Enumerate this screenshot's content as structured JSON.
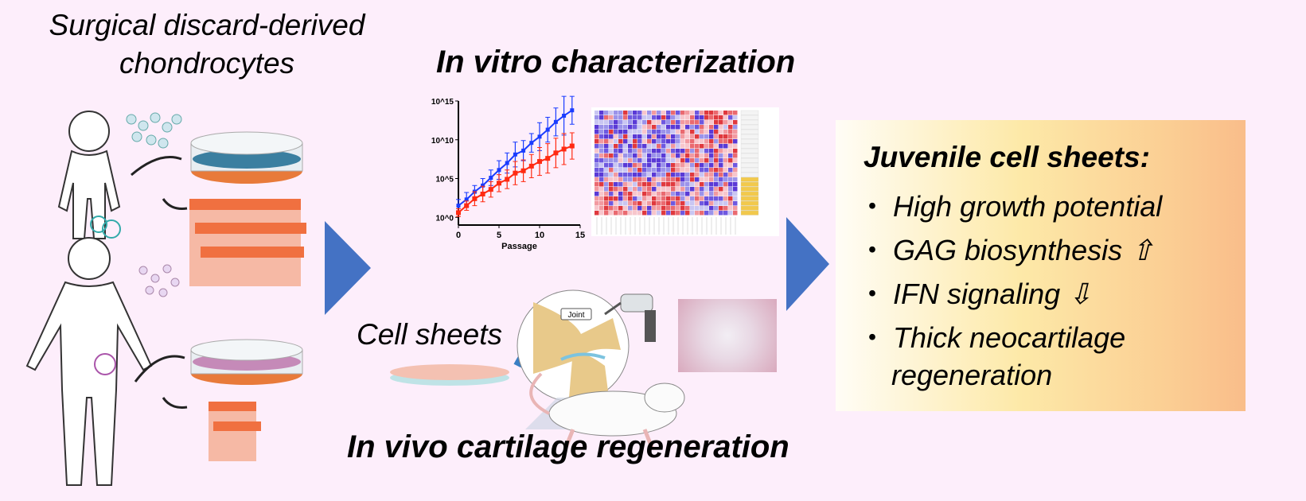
{
  "left": {
    "title_line1": "Surgical discard-derived",
    "title_line2": "chondrocytes"
  },
  "middle": {
    "in_vitro_title": "In vitro characterization",
    "in_vivo_title": "In vivo cartilage regeneration",
    "cell_sheets_label": "Cell sheets",
    "joint_label": "Joint"
  },
  "result_box": {
    "title": "Juvenile cell sheets:",
    "bullets": [
      {
        "text": "High growth potential",
        "arrow": ""
      },
      {
        "text": "GAG biosynthesis",
        "arrow": "⇧"
      },
      {
        "text": "IFN signaling",
        "arrow": "⇩"
      },
      {
        "text": "Thick neocartilage",
        "arrow": ""
      },
      {
        "text": "regeneration",
        "arrow": ""
      }
    ],
    "bullet_glyph": "・"
  },
  "colors": {
    "background": "#fdeefb",
    "arrow": "#4472c4",
    "series_blue": "#1a3cff",
    "series_red": "#ff2a12"
  },
  "chart_data": {
    "type": "line",
    "xlabel": "Passage",
    "ylabel": "",
    "x_ticks": [
      "0",
      "5",
      "10",
      "15"
    ],
    "y_ticks": [
      "10^0",
      "10^5",
      "10^10",
      "10^15"
    ],
    "xlim": [
      0,
      15
    ],
    "ylim": [
      0.1,
      1000000000000000.0
    ],
    "log_y": true,
    "grid": false,
    "x": [
      0,
      1,
      2,
      3,
      4,
      5,
      6,
      7,
      8,
      9,
      10,
      11,
      12,
      13,
      14
    ],
    "series": [
      {
        "color": "#1a3cff",
        "log10_values": [
          1.5,
          2.3,
          3.3,
          4.1,
          5.1,
          6.1,
          7.0,
          8.1,
          8.6,
          9.6,
          10.4,
          11.3,
          12.3,
          13.1,
          13.8
        ],
        "log10_err": [
          0.8,
          0.9,
          0.8,
          0.9,
          1.0,
          1.2,
          1.3,
          1.6,
          1.3,
          1.2,
          1.8,
          1.6,
          1.8,
          2.5,
          1.8
        ]
      },
      {
        "color": "#ff2a12",
        "log10_values": [
          0.6,
          1.5,
          2.4,
          3.0,
          3.6,
          4.4,
          4.9,
          5.7,
          6.0,
          6.6,
          7.2,
          7.6,
          8.3,
          8.8,
          9.2
        ],
        "log10_err": [
          0.5,
          0.6,
          0.9,
          1.0,
          1.0,
          1.1,
          1.2,
          1.5,
          1.4,
          1.5,
          1.8,
          1.9,
          1.9,
          2.0,
          1.7
        ]
      }
    ]
  }
}
